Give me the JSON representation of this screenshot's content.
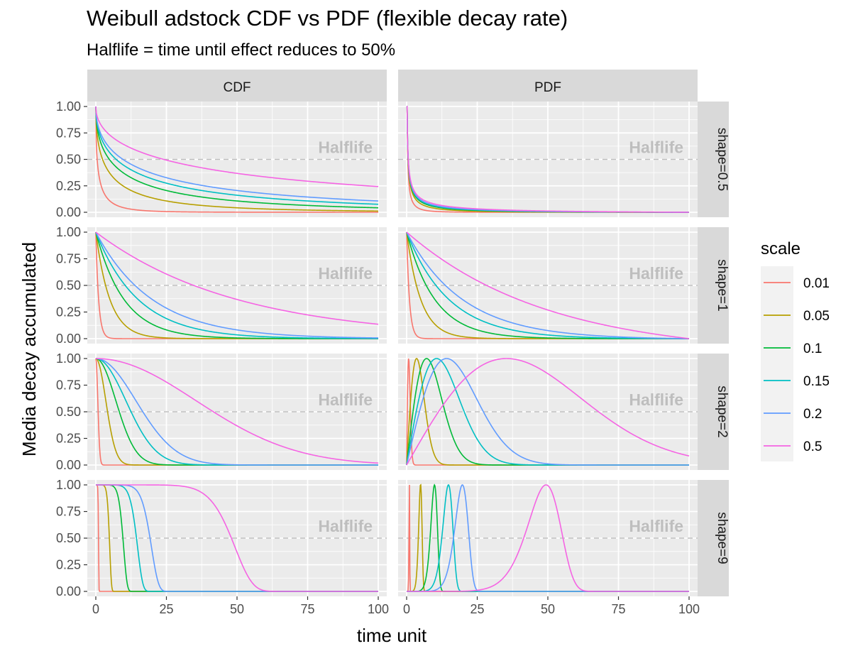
{
  "title": "Weibull adstock CDF vs PDF (flexible decay rate)",
  "subtitle": "Halflife = time until effect reduces to 50%",
  "xlabel": "time unit",
  "ylabel": "Media decay accumulated",
  "annotation": "Halflife",
  "legend_title": "scale",
  "colors": {
    "panel_bg": "#EBEBEB",
    "strip_bg": "#D9D9D9",
    "grid": "#FFFFFF",
    "dash": "#BEBEBE",
    "annotation": "#BEBEBE",
    "tick_text": "#4D4D4D"
  },
  "chart_data": {
    "type": "line",
    "facet_columns": [
      "CDF",
      "PDF"
    ],
    "facet_rows": [
      "shape=0.5",
      "shape=1",
      "shape=2",
      "shape=9"
    ],
    "shapes": [
      0.5,
      1,
      2,
      9
    ],
    "halflife_y": 0.5,
    "x_range": [
      0,
      100
    ],
    "xlim": [
      0,
      100
    ],
    "ylim": [
      0,
      1
    ],
    "x_ticks": [
      "0",
      "25",
      "50",
      "75",
      "100"
    ],
    "y_ticks": [
      "0.00",
      "0.25",
      "0.50",
      "0.75",
      "1.00"
    ],
    "grid": true,
    "legend_position": "right",
    "series": [
      {
        "name": "0.01",
        "scale": 0.01,
        "color": "#F8766D"
      },
      {
        "name": "0.05",
        "scale": 0.05,
        "color": "#B79F00"
      },
      {
        "name": "0.1",
        "scale": 0.1,
        "color": "#00BA38"
      },
      {
        "name": "0.15",
        "scale": 0.15,
        "color": "#00BFC4"
      },
      {
        "name": "0.2",
        "scale": 0.2,
        "color": "#619CFF"
      },
      {
        "name": "0.5",
        "scale": 0.5,
        "color": "#F564E3"
      }
    ]
  }
}
